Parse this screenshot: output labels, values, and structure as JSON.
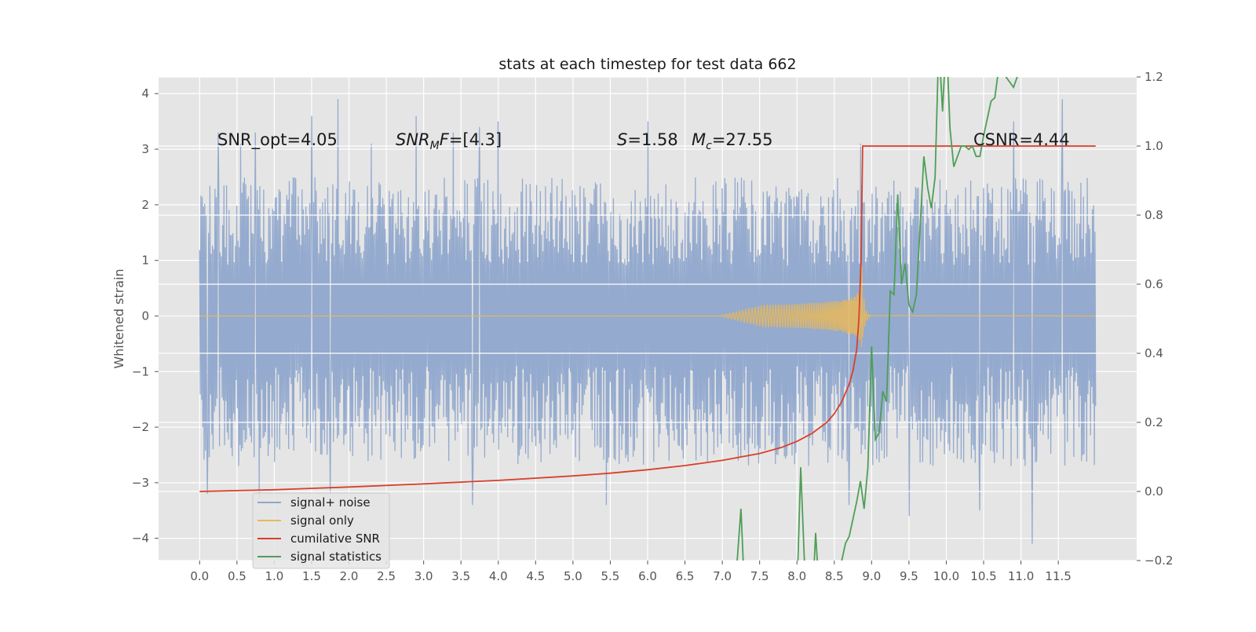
{
  "chart_data": {
    "type": "line",
    "title": "stats at each timestep for test data 662",
    "ylabel": "Whitened strain",
    "xlabel": "",
    "xlim": [
      -0.55,
      12.55
    ],
    "ylim": [
      -4.4,
      4.3
    ],
    "y2lim": [
      -0.2,
      1.2
    ],
    "grid": true,
    "legend_position": "lower-left",
    "x_ticks": [
      "0.0",
      "0.5",
      "1.0",
      "1.5",
      "2.0",
      "2.5",
      "3.0",
      "3.5",
      "4.0",
      "4.5",
      "5.0",
      "5.5",
      "6.0",
      "6.5",
      "7.0",
      "7.5",
      "8.0",
      "8.5",
      "9.0",
      "9.5",
      "10.0",
      "10.5",
      "11.0",
      "11.5"
    ],
    "y_ticks": [
      "4",
      "3",
      "2",
      "1",
      "0",
      "−1",
      "−2",
      "−3",
      "−4"
    ],
    "y2_ticks": [
      "1.2",
      "1.0",
      "0.8",
      "0.6",
      "0.4",
      "0.2",
      "0.0",
      "−0.2"
    ],
    "annotations": {
      "snr_opt": "SNR_opt=4.05",
      "snr_mf_main": "SNR",
      "snr_mf_sub": "M",
      "snr_mf_tail": "F=[4.3]",
      "s_main": "S",
      "s_tail": "=1.58",
      "mc_main": "M",
      "mc_sub": "c",
      "mc_tail": "=27.55",
      "csnr": "CSNR=4.44"
    },
    "series": [
      {
        "name": "signal+ noise",
        "color": "#8fa7cc",
        "axis": "left",
        "x_range": [
          0.0,
          12.0
        ],
        "envelope": [
          -2.6,
          2.4
        ],
        "spikes": [
          [
            0.25,
            3.3
          ],
          [
            0.55,
            3.1
          ],
          [
            0.75,
            3.3
          ],
          [
            1.5,
            3.6
          ],
          [
            1.85,
            3.9
          ],
          [
            2.3,
            3.1
          ],
          [
            2.9,
            3.6
          ],
          [
            3.4,
            3.3
          ],
          [
            3.75,
            3.4
          ],
          [
            4.0,
            3.5
          ],
          [
            6.0,
            3.5
          ],
          [
            8.85,
            3.1
          ],
          [
            10.9,
            3.5
          ],
          [
            11.55,
            3.9
          ],
          [
            0.1,
            -3.2
          ],
          [
            0.8,
            -3.3
          ],
          [
            1.75,
            -3.2
          ],
          [
            3.65,
            -3.4
          ],
          [
            5.45,
            -3.4
          ],
          [
            8.7,
            -3.4
          ],
          [
            9.5,
            -3.6
          ],
          [
            10.45,
            -3.5
          ],
          [
            11.15,
            -4.1
          ]
        ]
      },
      {
        "name": "signal only",
        "color": "#e8b85a",
        "axis": "left",
        "flat_until": 7.0,
        "merger_time": 8.87,
        "peak_amplitude": 0.9
      },
      {
        "name": "cumilative SNR",
        "color": "#d93f2a",
        "axis": "right",
        "x": [
          0.0,
          1.0,
          2.0,
          3.0,
          4.0,
          5.0,
          5.5,
          6.0,
          6.5,
          7.0,
          7.5,
          7.8,
          8.0,
          8.2,
          8.4,
          8.5,
          8.6,
          8.7,
          8.75,
          8.8,
          8.83,
          8.86,
          8.88,
          9.0,
          10.0,
          11.0,
          12.0
        ],
        "y": [
          0.0,
          0.005,
          0.013,
          0.022,
          0.032,
          0.045,
          0.053,
          0.063,
          0.075,
          0.09,
          0.11,
          0.128,
          0.145,
          0.168,
          0.2,
          0.225,
          0.26,
          0.31,
          0.35,
          0.41,
          0.5,
          0.68,
          1.0,
          1.0,
          1.0,
          1.0,
          1.0
        ]
      },
      {
        "name": "signal statistics",
        "color": "#4f9e58",
        "axis": "right",
        "x": [
          7.2,
          7.25,
          7.3,
          7.8,
          7.85,
          8.0,
          8.05,
          8.1,
          8.2,
          8.25,
          8.3,
          8.6,
          8.65,
          8.7,
          8.8,
          8.85,
          8.9,
          8.95,
          9.0,
          9.05,
          9.1,
          9.15,
          9.2,
          9.25,
          9.3,
          9.35,
          9.4,
          9.45,
          9.5,
          9.55,
          9.6,
          9.65,
          9.7,
          9.75,
          9.8,
          9.85,
          9.9,
          9.95,
          10.0,
          10.05,
          10.1,
          10.2,
          10.25,
          10.3,
          10.35,
          10.4,
          10.45,
          10.5,
          10.55,
          10.6,
          10.65,
          10.7,
          10.75,
          10.8,
          10.9,
          10.95,
          11.0,
          11.05,
          11.1
        ],
        "y": [
          -0.2,
          -0.05,
          -0.3,
          -0.3,
          -0.2,
          -0.3,
          0.07,
          -0.2,
          -0.35,
          -0.12,
          -0.3,
          -0.2,
          -0.15,
          -0.13,
          -0.03,
          0.03,
          -0.05,
          0.07,
          0.42,
          0.15,
          0.17,
          0.29,
          0.26,
          0.58,
          0.57,
          0.86,
          0.6,
          0.66,
          0.54,
          0.52,
          0.57,
          0.77,
          0.97,
          0.88,
          0.82,
          0.91,
          1.3,
          1.1,
          1.32,
          1.05,
          0.94,
          1.0,
          1.0,
          0.99,
          1.0,
          0.97,
          0.97,
          1.03,
          1.08,
          1.13,
          1.14,
          1.22,
          1.3,
          1.2,
          1.17,
          1.2,
          1.22,
          1.25,
          1.28
        ]
      }
    ]
  }
}
